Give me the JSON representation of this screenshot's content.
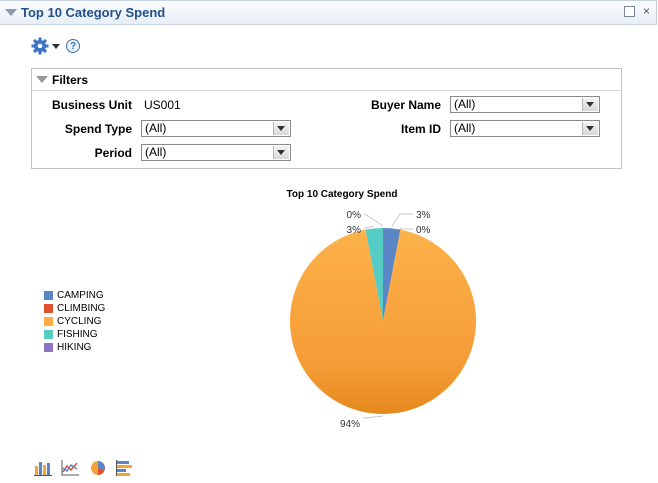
{
  "window": {
    "title": "Top 10 Category Spend"
  },
  "toolbar": {
    "gear_icon": "gear-icon",
    "help_symbol": "?"
  },
  "filters": {
    "title": "Filters",
    "business_unit": {
      "label": "Business Unit",
      "value": "US001"
    },
    "spend_type": {
      "label": "Spend Type",
      "value": "(All)"
    },
    "period": {
      "label": "Period",
      "value": "(All)"
    },
    "buyer_name": {
      "label": "Buyer Name",
      "value": "(All)"
    },
    "item_id": {
      "label": "Item ID",
      "value": "(All)"
    }
  },
  "chart_data": {
    "type": "pie",
    "title": "Top 10 Category Spend",
    "categories": [
      "CAMPING",
      "CLIMBING",
      "CYCLING",
      "FISHING",
      "HIKING"
    ],
    "values": [
      3,
      0,
      94,
      3,
      0
    ],
    "data_labels": [
      "3%",
      "0%",
      "94%",
      "3%",
      "0%"
    ],
    "colors": [
      "#5b86c6",
      "#e0522e",
      "#fbac46",
      "#56cdc4",
      "#8c74c4"
    ],
    "legend": "left"
  },
  "chart_type_icons": [
    "bar-chart-icon",
    "line-chart-icon",
    "pie-chart-icon",
    "horizontal-bar-chart-icon"
  ]
}
